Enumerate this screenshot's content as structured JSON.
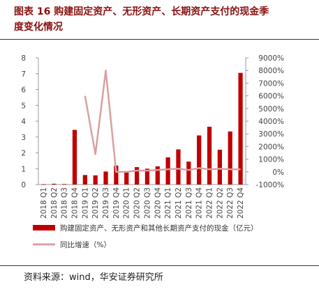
{
  "figure": {
    "title_line1": "图表 16  购建固定资产、无形资产、长期资产支付的现金季",
    "title_line2": "度变化情况",
    "source": "资料来源：wind，华安证券研究所"
  },
  "colors": {
    "bar": "#c00000",
    "line": "#d9a0a3",
    "rule": "#6b1d1d",
    "title": "#8a1111"
  },
  "chart_data": {
    "type": "bar",
    "categories": [
      "2018 Q1",
      "2018 Q2",
      "2018 Q3",
      "2018 Q4",
      "2019 Q1",
      "2019 Q2",
      "2019 Q3",
      "2019 Q4",
      "2020 Q1",
      "2020 Q2",
      "2020 Q3",
      "2020 Q4",
      "2021 Q1",
      "2021 Q2",
      "2021 Q3",
      "2021 Q4",
      "2022 Q1",
      "2022 Q2",
      "2022 Q3",
      "2022 Q4"
    ],
    "series": [
      {
        "name": "购建固定资产、无形资产和其他长期资产支付的现金（亿元）",
        "type": "bar",
        "axis": "left",
        "values": [
          0.02,
          0.05,
          0.03,
          3.45,
          0.6,
          0.58,
          0.82,
          1.2,
          0.85,
          1.1,
          1.0,
          1.15,
          1.72,
          2.22,
          1.45,
          3.1,
          3.65,
          2.2,
          3.35,
          7.05
        ]
      },
      {
        "name": "同比增速（%）",
        "type": "line",
        "axis": "right",
        "values": [
          null,
          null,
          null,
          null,
          6000,
          1400,
          8000,
          0,
          0,
          100,
          100,
          150,
          200,
          250,
          150,
          300,
          200,
          250,
          200,
          200
        ]
      }
    ],
    "y_left": {
      "lim": [
        0,
        8
      ],
      "ticks": [
        "0",
        "1",
        "2",
        "3",
        "4",
        "5",
        "6",
        "7",
        "8"
      ]
    },
    "y_right": {
      "lim": [
        -1000,
        9000
      ],
      "ticks": [
        "-1000%",
        "0%",
        "1000%",
        "2000%",
        "3000%",
        "4000%",
        "5000%",
        "6000%",
        "7000%",
        "8000%",
        "9000%"
      ]
    },
    "legend_position": "bottom",
    "grid": false
  }
}
